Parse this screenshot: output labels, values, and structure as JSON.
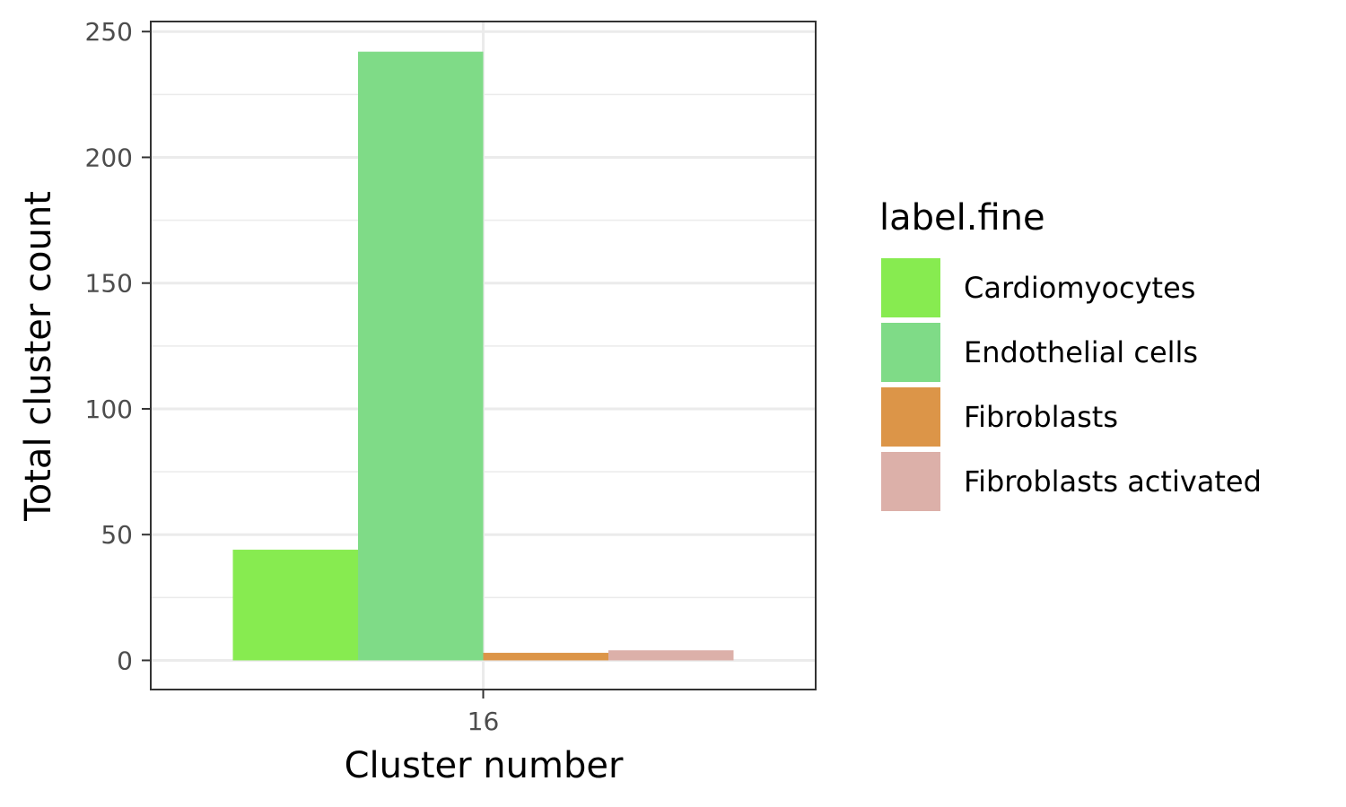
{
  "chart_data": {
    "type": "bar",
    "categories": [
      "16"
    ],
    "series": [
      {
        "name": "Cardiomyocytes",
        "values": [
          44
        ],
        "color": "#87EB50"
      },
      {
        "name": "Endothelial cells",
        "values": [
          242
        ],
        "color": "#7FDB87"
      },
      {
        "name": "Fibroblasts",
        "values": [
          3
        ],
        "color": "#DC9548"
      },
      {
        "name": "Fibroblasts activated",
        "values": [
          4
        ],
        "color": "#DCB0A9"
      }
    ],
    "title": "",
    "xlabel": "Cluster number",
    "ylabel": "Total cluster count",
    "ylim": [
      -11.6,
      254
    ],
    "yticks": [
      "0",
      "50",
      "100",
      "150",
      "200",
      "250"
    ],
    "grid": true,
    "legend": {
      "title": "label.fine",
      "position": "right"
    }
  }
}
